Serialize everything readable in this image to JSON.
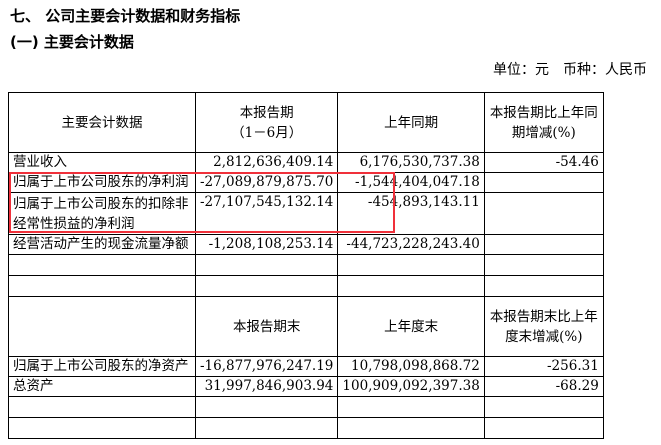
{
  "section_title": "七、 公司主要会计数据和财务指标",
  "subsection_title": "(一) 主要会计数据",
  "unit": {
    "unit_label": "单位：元",
    "currency_label": "币种：人民币"
  },
  "table1": {
    "headers": [
      "主要会计数据",
      "本报告期\n（1－6月）",
      "上年同期",
      "本报告期比上年同期增减(%)"
    ],
    "rows": [
      [
        "营业收入",
        "2,812,636,409.14",
        "6,176,530,737.38",
        "-54.46"
      ],
      [
        "归属于上市公司股东的净利润",
        "-27,089,879,875.70",
        "-1,544,404,047.18",
        ""
      ],
      [
        "归属于上市公司股东的扣除非经常性损益的净利润",
        "-27,107,545,132.14",
        "-454,893,143.11",
        ""
      ],
      [
        "经营活动产生的现金流量净额",
        "-1,208,108,253.14",
        "-44,723,228,243.40",
        ""
      ]
    ]
  },
  "table2": {
    "headers": [
      "",
      "本报告期末",
      "上年度末",
      "本报告期末比上年度末增减(%)"
    ],
    "rows": [
      [
        "归属于上市公司股东的净资产",
        "-16,877,976,247.19",
        "10,798,098,868.72",
        "-256.31"
      ],
      [
        "总资产",
        "31,997,846,903.94",
        "100,909,092,397.38",
        "-68.29"
      ]
    ]
  },
  "highlight_color": "#f0303a"
}
